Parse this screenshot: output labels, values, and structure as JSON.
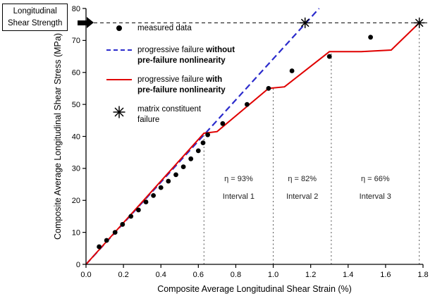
{
  "strength_label": {
    "line1": "Longitudinal",
    "line2": "Shear Strength"
  },
  "legend": {
    "measured": "measured data",
    "without": {
      "prefix": "progressive failure ",
      "bold_word": "without",
      "bold_line2": "pre-failure nonlinearity"
    },
    "with": {
      "prefix": "progressive failure ",
      "bold_word": "with",
      "bold_line2": "pre-failure nonlinearity"
    },
    "matrix_line1": "matrix constituent",
    "matrix_line2": "failure"
  },
  "chart_data": {
    "type": "line",
    "xlabel": "Composite Average Longitudinal Shear Strain (%)",
    "ylabel": "Composite Average Longitudinal Shear Stress (MPa)",
    "xlim": [
      0.0,
      1.8
    ],
    "ylim": [
      0,
      80
    ],
    "xticks": [
      0.0,
      0.2,
      0.4,
      0.6,
      0.8,
      1.0,
      1.2,
      1.4,
      1.6,
      1.8
    ],
    "yticks": [
      0,
      10,
      20,
      30,
      40,
      50,
      60,
      70,
      80
    ],
    "grid": false,
    "shear_strength_mpa": 75.5,
    "measured_points": [
      [
        0.07,
        5.5
      ],
      [
        0.11,
        7.5
      ],
      [
        0.155,
        10
      ],
      [
        0.195,
        12.5
      ],
      [
        0.24,
        15
      ],
      [
        0.28,
        17
      ],
      [
        0.32,
        19.5
      ],
      [
        0.36,
        21.5
      ],
      [
        0.4,
        24
      ],
      [
        0.44,
        26
      ],
      [
        0.48,
        28
      ],
      [
        0.52,
        30.5
      ],
      [
        0.56,
        33
      ],
      [
        0.6,
        35.5
      ],
      [
        0.625,
        38
      ],
      [
        0.65,
        40.5
      ],
      [
        0.73,
        44
      ],
      [
        0.86,
        50
      ],
      [
        0.975,
        55
      ],
      [
        1.1,
        60.5
      ],
      [
        1.3,
        65
      ],
      [
        1.52,
        71
      ]
    ],
    "series": [
      {
        "name": "progressive failure without pre-failure nonlinearity",
        "style": "dashed",
        "color": "#2b2bcc",
        "points": [
          [
            0,
            0
          ],
          [
            1.245,
            80
          ]
        ]
      },
      {
        "name": "progressive failure with pre-failure nonlinearity",
        "style": "solid",
        "color": "#e00000",
        "points": [
          [
            0,
            0
          ],
          [
            0.63,
            41
          ],
          [
            0.7,
            41.5
          ],
          [
            0.975,
            55
          ],
          [
            1.06,
            55.5
          ],
          [
            1.3,
            66.5
          ],
          [
            1.47,
            66.5
          ],
          [
            1.63,
            67
          ],
          [
            1.78,
            75.5
          ]
        ]
      }
    ],
    "matrix_failure_points": [
      [
        1.17,
        75.5
      ],
      [
        1.78,
        75.5
      ]
    ],
    "interval_boundaries": [
      {
        "x": 0.63,
        "y_top": 41
      },
      {
        "x": 1.0,
        "y_top": 55
      },
      {
        "x": 1.31,
        "y_top": 66.5
      },
      {
        "x": 1.78,
        "y_top": 75.5
      }
    ],
    "interval_annotations": [
      {
        "eta": "η = 93%",
        "interval": "Interval 1",
        "x": 0.815,
        "y_eta": 26,
        "y_interval": 20.5
      },
      {
        "eta": "η = 82%",
        "interval": "Interval 2",
        "x": 1.155,
        "y_eta": 26,
        "y_interval": 20.5
      },
      {
        "eta": "η = 66%",
        "interval": "Interval 3",
        "x": 1.545,
        "y_eta": 26,
        "y_interval": 20.5
      }
    ]
  }
}
